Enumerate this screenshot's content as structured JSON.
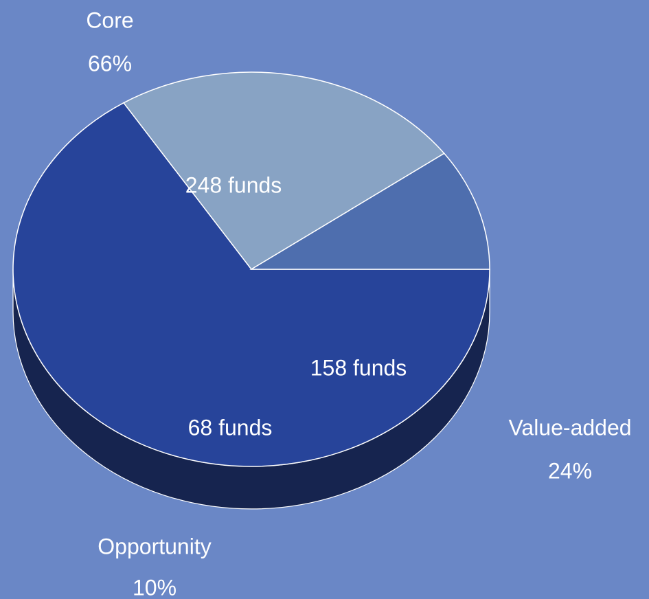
{
  "chart_data": {
    "type": "pie",
    "categories": [
      "Core",
      "Value-added",
      "Opportunity"
    ],
    "values": [
      66,
      24,
      10
    ],
    "value_labels": [
      "66%",
      "24%",
      "10%"
    ],
    "counts": [
      248,
      158,
      68
    ],
    "count_labels": [
      "248 funds",
      "158 funds",
      "68 funds"
    ],
    "colors": [
      "#27449a",
      "#88a3c4",
      "#4e6eae"
    ],
    "side_colors": [
      "#16244f",
      "#44505e",
      "#2a3a5e"
    ]
  }
}
